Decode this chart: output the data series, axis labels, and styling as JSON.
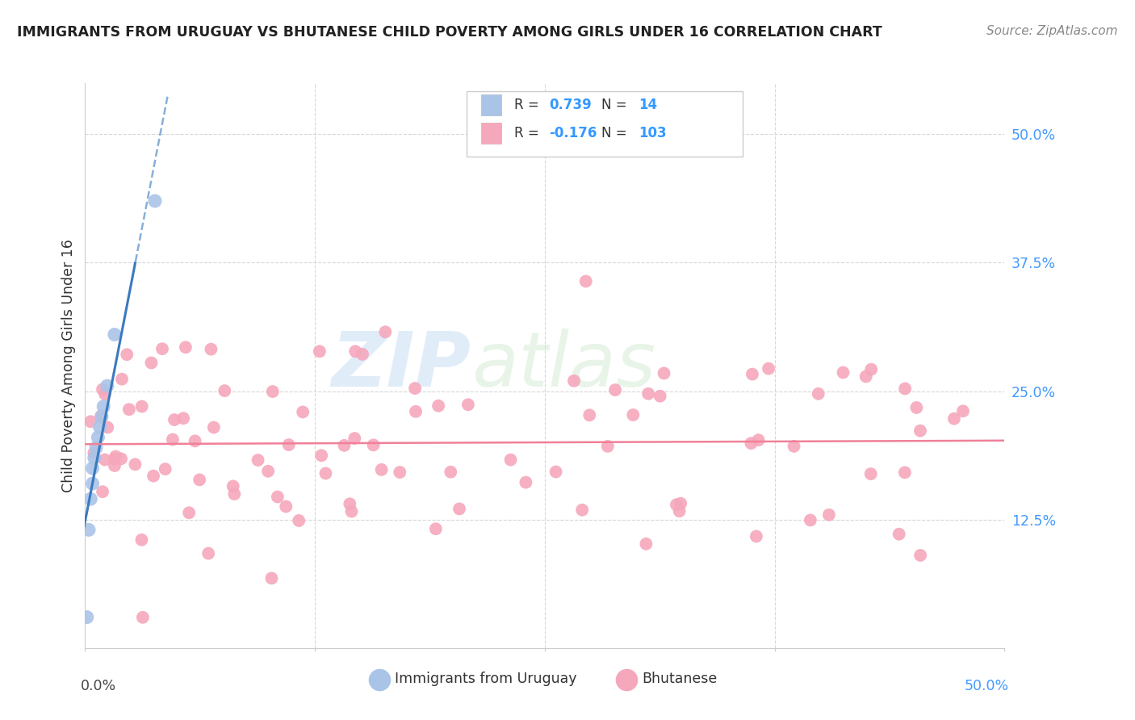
{
  "title": "IMMIGRANTS FROM URUGUAY VS BHUTANESE CHILD POVERTY AMONG GIRLS UNDER 16 CORRELATION CHART",
  "source": "Source: ZipAtlas.com",
  "ylabel": "Child Poverty Among Girls Under 16",
  "ytick_vals": [
    0.125,
    0.25,
    0.375,
    0.5
  ],
  "ytick_labels": [
    "12.5%",
    "25.0%",
    "37.5%",
    "50.0%"
  ],
  "xlim": [
    0.0,
    0.5
  ],
  "ylim": [
    0.0,
    0.55
  ],
  "watermark_zip": "ZIP",
  "watermark_atlas": "atlas",
  "uruguay_color": "#aac4e8",
  "bhutan_color": "#f5a8bc",
  "trend_uruguay_color": "#3a7abf",
  "trend_bhutan_color": "#f08098",
  "background_color": "#ffffff",
  "grid_color": "#d8d8d8",
  "title_color": "#222222",
  "source_color": "#888888",
  "ytick_color": "#4499ff",
  "label_color": "#333333",
  "legend_text_color": "#222222",
  "legend_num_color": "#3399ff"
}
